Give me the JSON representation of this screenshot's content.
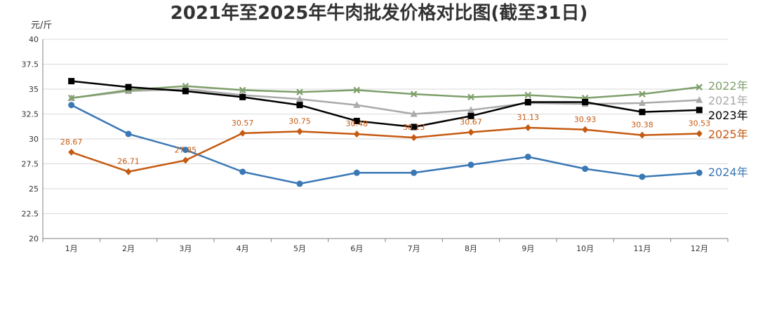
{
  "chart_data": {
    "type": "line",
    "title": "2021年至2025年牛肉批发价格对比图(截至31日)",
    "ylabel": "元/斤",
    "xlabel": "",
    "ylim": [
      20,
      40
    ],
    "yticks": [
      "20",
      "22.5",
      "25",
      "27.5",
      "30",
      "32.5",
      "35",
      "37.5",
      "40"
    ],
    "categories": [
      "1月",
      "2月",
      "3月",
      "4月",
      "5月",
      "6月",
      "7月",
      "8月",
      "9月",
      "10月",
      "11月",
      "12月"
    ],
    "grid": true,
    "legend_placement": "right",
    "series": [
      {
        "name": "2021年",
        "color": "#aaaaaa",
        "marker": "triangle",
        "values": [
          34.1,
          34.8,
          35.0,
          34.4,
          34.0,
          33.4,
          32.5,
          32.9,
          33.6,
          33.5,
          33.6,
          33.9
        ]
      },
      {
        "name": "2024年",
        "color": "#3a78b5",
        "marker": "circle",
        "values": [
          33.4,
          30.5,
          28.9,
          26.7,
          25.5,
          26.6,
          26.6,
          27.4,
          28.2,
          27.0,
          26.2,
          26.6
        ]
      },
      {
        "name": "2022年",
        "color": "#7e9f6a",
        "marker": "x",
        "values": [
          34.1,
          34.9,
          35.3,
          34.9,
          34.7,
          34.9,
          34.5,
          34.2,
          34.4,
          34.1,
          34.5,
          35.2
        ]
      },
      {
        "name": "2023年",
        "color": "#000000",
        "marker": "square",
        "values": [
          35.8,
          35.2,
          34.8,
          34.2,
          33.4,
          31.8,
          31.2,
          32.3,
          33.7,
          33.7,
          32.7,
          32.9
        ]
      },
      {
        "name": "2025年",
        "color": "#c55a11",
        "marker": "diamond",
        "values": [
          28.67,
          26.71,
          27.85,
          30.57,
          30.75,
          30.48,
          30.13,
          30.67,
          31.13,
          30.93,
          30.38,
          30.53
        ],
        "data_labels": [
          "28.67",
          "26.71",
          "27.85",
          "30.57",
          "30.75",
          "30.48",
          "30.13",
          "30.67",
          "31.13",
          "30.93",
          "30.38",
          "30.53"
        ]
      }
    ]
  }
}
